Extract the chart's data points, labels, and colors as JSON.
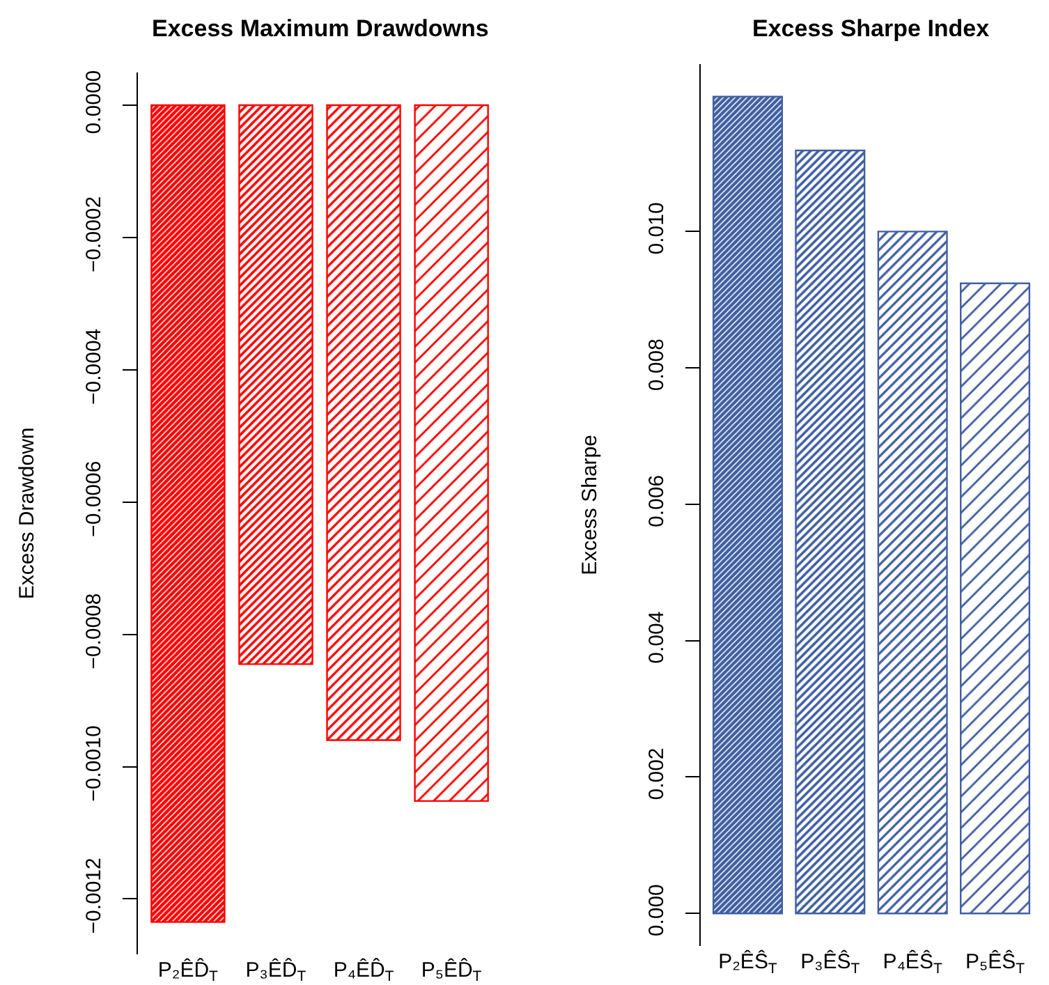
{
  "chart_data": [
    {
      "type": "bar",
      "title": "Excess Maximum Drawdowns",
      "ylabel": "Excess Drawdown",
      "categories": [
        "P₂ÊD̂$_{T}$",
        "P₃ÊD̂$_{T}$",
        "P₄ÊD̂$_{T}$",
        "P₅ÊD̂$_{T}$"
      ],
      "values": [
        -0.001235,
        -0.000845,
        -0.00096,
        -0.001052
      ],
      "colors": [
        "#ff0000",
        "#ff0000",
        "#ff0000",
        "#ff0000"
      ],
      "ylim": [
        -0.001284,
        5e-05
      ],
      "yticks": [
        {
          "value": 0,
          "label": "0.0000"
        },
        {
          "value": -0.0002,
          "label": "−0.0002"
        },
        {
          "value": -0.0004,
          "label": "−0.0004"
        },
        {
          "value": -0.0006,
          "label": "−0.0006"
        },
        {
          "value": -0.0008,
          "label": "−0.0008"
        },
        {
          "value": -0.001,
          "label": "−0.0010"
        },
        {
          "value": -0.0012,
          "label": "−0.0012"
        }
      ]
    },
    {
      "type": "bar",
      "title": "Excess Sharpe Index",
      "ylabel": "Excess Sharpe",
      "categories": [
        "P₂ÊŜ$_{T}$",
        "P₃ÊŜ$_{T}$",
        "P₄ÊŜ$_{T}$",
        "P₅ÊŜ$_{T}$"
      ],
      "values": [
        0.01198,
        0.01119,
        0.01,
        0.00924
      ],
      "colors": [
        "#3f5fa0",
        "#3f5fa0",
        "#3f5fa0",
        "#3f5fa0"
      ],
      "ylim": [
        -0.00048,
        0.01246
      ],
      "yticks": [
        {
          "value": 0,
          "label": "0.000"
        },
        {
          "value": 0.002,
          "label": "0.002"
        },
        {
          "value": 0.004,
          "label": "0.004"
        },
        {
          "value": 0.006,
          "label": "0.006"
        },
        {
          "value": 0.008,
          "label": "0.008"
        },
        {
          "value": 0.01,
          "label": "0.010"
        }
      ]
    }
  ]
}
